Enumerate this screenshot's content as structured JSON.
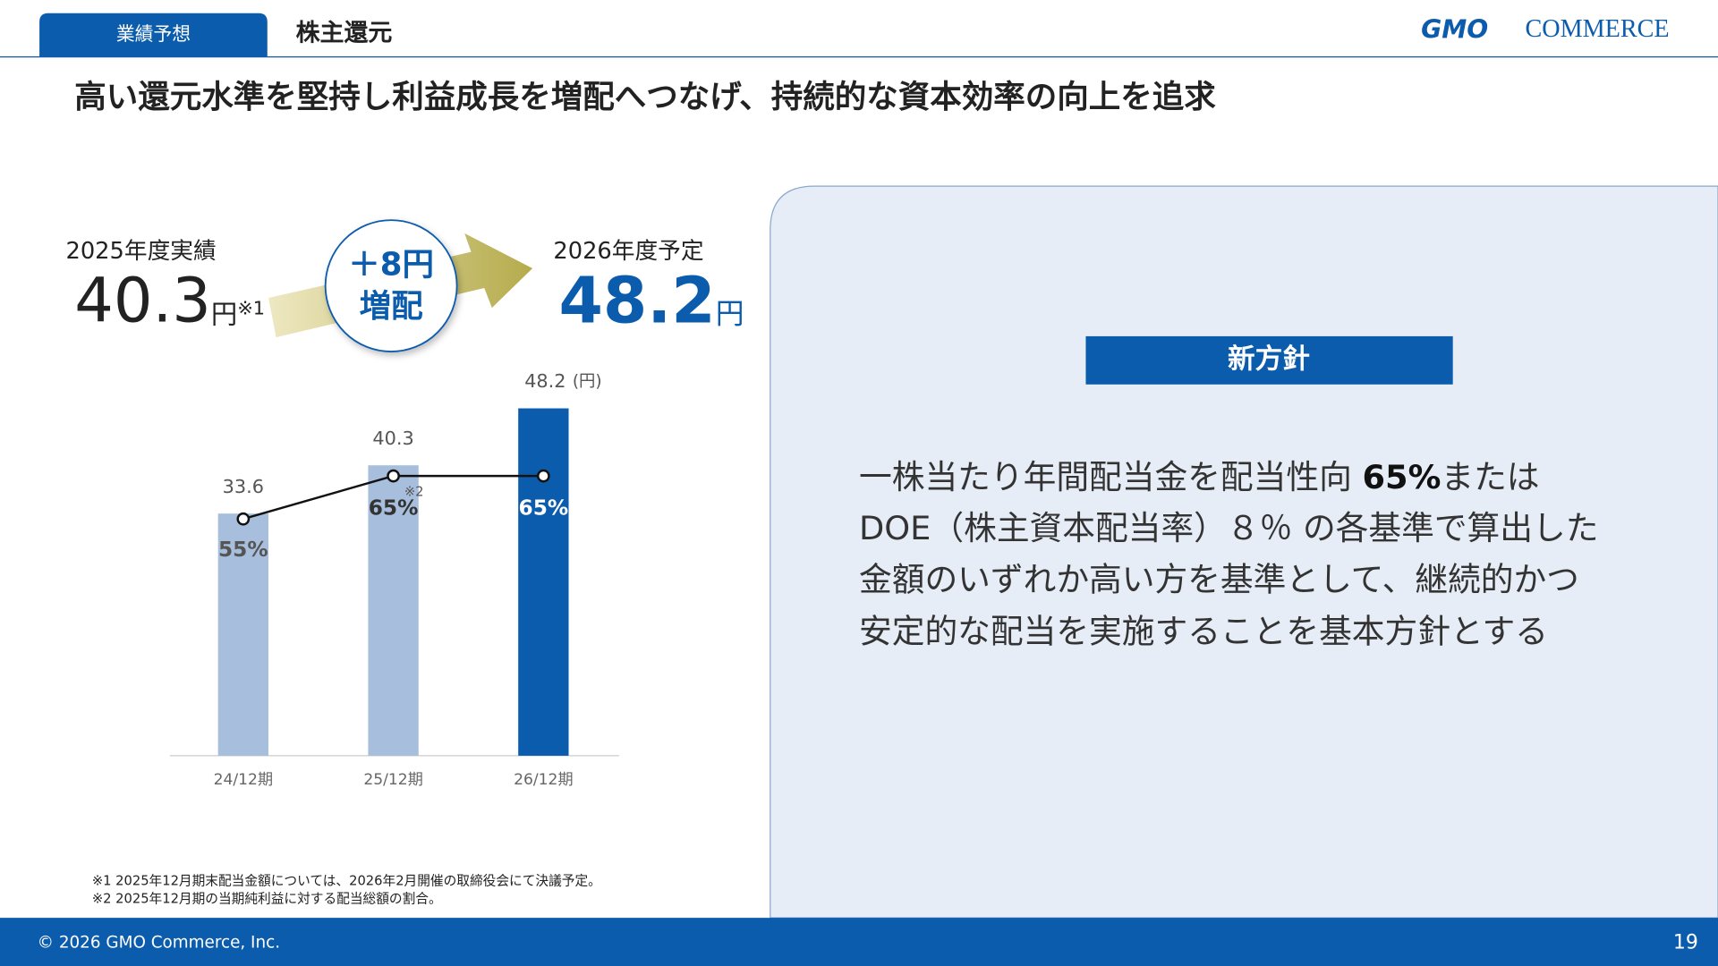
{
  "header": {
    "tab": "業績予想",
    "section": "株主還元",
    "logo_gmo": "GMO",
    "logo_commerce": "COMMERCE"
  },
  "headline": "高い還元水準を堅持し利益成長を増配へつなげ、持続的な資本効率の向上を追求",
  "summary": {
    "from": {
      "label": "2025年度実績",
      "value": "40.3",
      "unit": "円",
      "note": "※1"
    },
    "badge": [
      "＋8円",
      "増配"
    ],
    "to": {
      "label": "2026年度予定",
      "value": "48.2",
      "unit": "円"
    }
  },
  "chart_data": {
    "type": "bar",
    "categories": [
      "24/12期",
      "25/12期",
      "26/12期"
    ],
    "values": [
      33.6,
      40.3,
      48.2
    ],
    "unit_label": "(円)",
    "colors": [
      "#a7bfdc",
      "#a7bfdc",
      "#0b5cad"
    ],
    "payout_ratio": {
      "values": [
        55,
        65,
        65
      ],
      "value_labels": [
        "55%",
        "65%",
        "65%"
      ],
      "notes": [
        null,
        "※2",
        null
      ],
      "color": "#111111"
    }
  },
  "policy": {
    "title": "新方針",
    "line0": {
      "before": "一株当たり年間配当金を配当性向 ",
      "bold": "65%",
      "after": "または"
    },
    "lines": [
      "DOE（株主資本配当率）８％ の各基準で算出した",
      "金額のいずれか高い方を基準として、継続的かつ",
      "安定的な配当を実施することを基本方針とする"
    ]
  },
  "footnotes": [
    "※1 2025年12月期末配当金額については、2026年2月開催の取締役会にて決議予定。",
    "※2 2025年12月期の当期純利益に対する配当総額の割合。"
  ],
  "footer": {
    "copyright": "© 2026 GMO Commerce, Inc.",
    "page": "19"
  }
}
